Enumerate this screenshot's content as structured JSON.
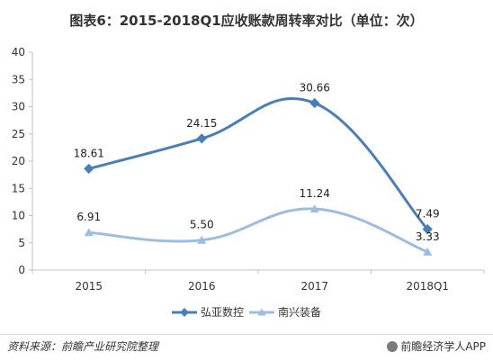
{
  "title": "图表6：2015-2018Q1应收账款周转率对比（单位：次）",
  "chart_data": {
    "type": "line",
    "categories": [
      "2015",
      "2016",
      "2017",
      "2018Q1"
    ],
    "series": [
      {
        "name": "弘亚数控",
        "values": [
          18.61,
          24.15,
          30.66,
          7.49
        ],
        "labels": [
          "18.61",
          "24.15",
          "30.66",
          "7.49"
        ],
        "color": "#4a7eb5"
      },
      {
        "name": "南兴装备",
        "values": [
          6.91,
          5.5,
          11.24,
          3.33
        ],
        "labels": [
          "6.91",
          "5.50",
          "11.24",
          "3.33"
        ],
        "color": "#9dbde0"
      }
    ],
    "ylim": [
      0,
      40
    ],
    "yticks": [
      "0",
      "5",
      "10",
      "15",
      "20",
      "25",
      "30",
      "35",
      "40"
    ],
    "xlabel": "",
    "ylabel": "",
    "grid": false,
    "legend": "bottom"
  },
  "footer": {
    "source": "资料来源：前瞻产业研究院整理",
    "brand": "前瞻经济学人APP"
  }
}
